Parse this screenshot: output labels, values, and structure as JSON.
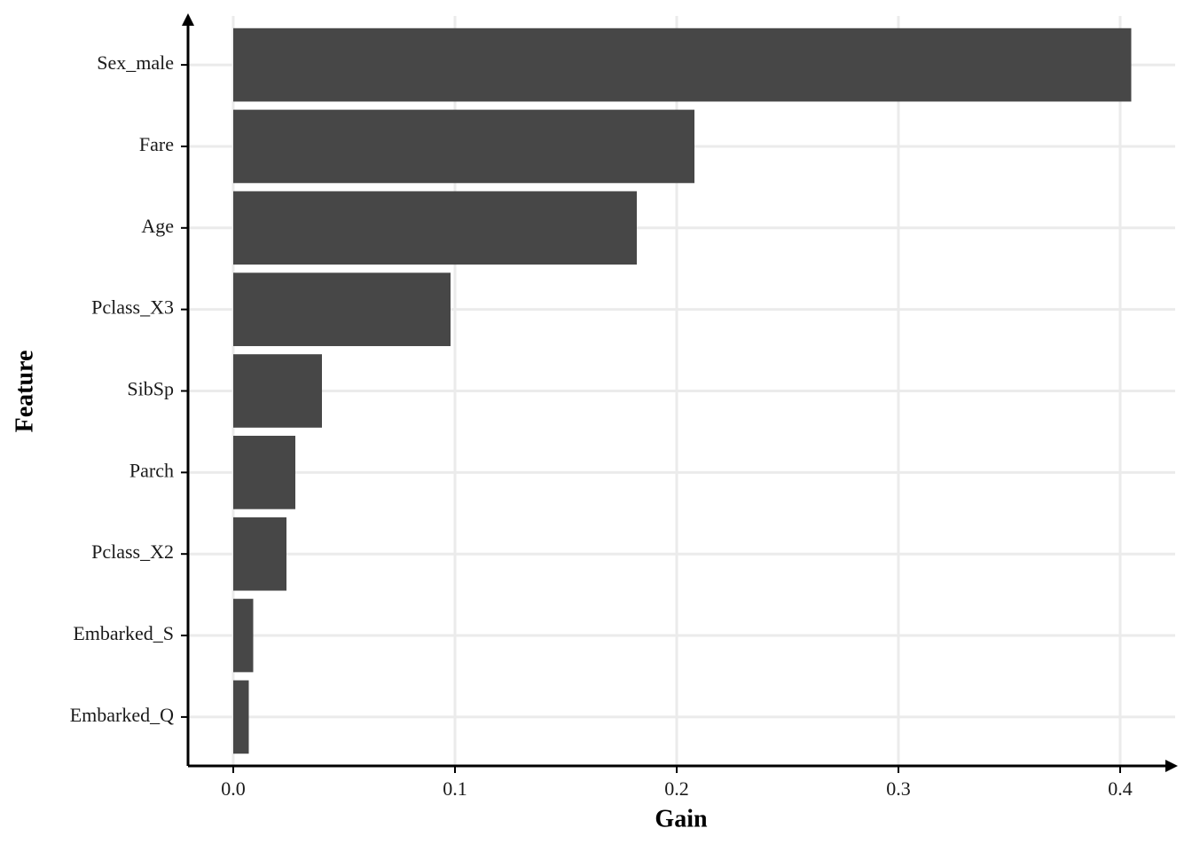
{
  "chart_data": {
    "type": "bar",
    "orientation": "horizontal",
    "x_label": "Gain",
    "y_label": "Feature",
    "categories": [
      "Sex_male",
      "Fare",
      "Age",
      "Pclass_X3",
      "SibSp",
      "Parch",
      "Pclass_X2",
      "Embarked_S",
      "Embarked_Q"
    ],
    "values": [
      0.405,
      0.208,
      0.182,
      0.098,
      0.04,
      0.028,
      0.024,
      0.009,
      0.007
    ],
    "color": "#474747",
    "xlim": [
      -0.0204,
      0.4248
    ],
    "xticks": [
      {
        "value": 0,
        "label": "0.0"
      },
      0.1,
      0.2,
      0.3,
      0.4
    ],
    "grid": true
  }
}
